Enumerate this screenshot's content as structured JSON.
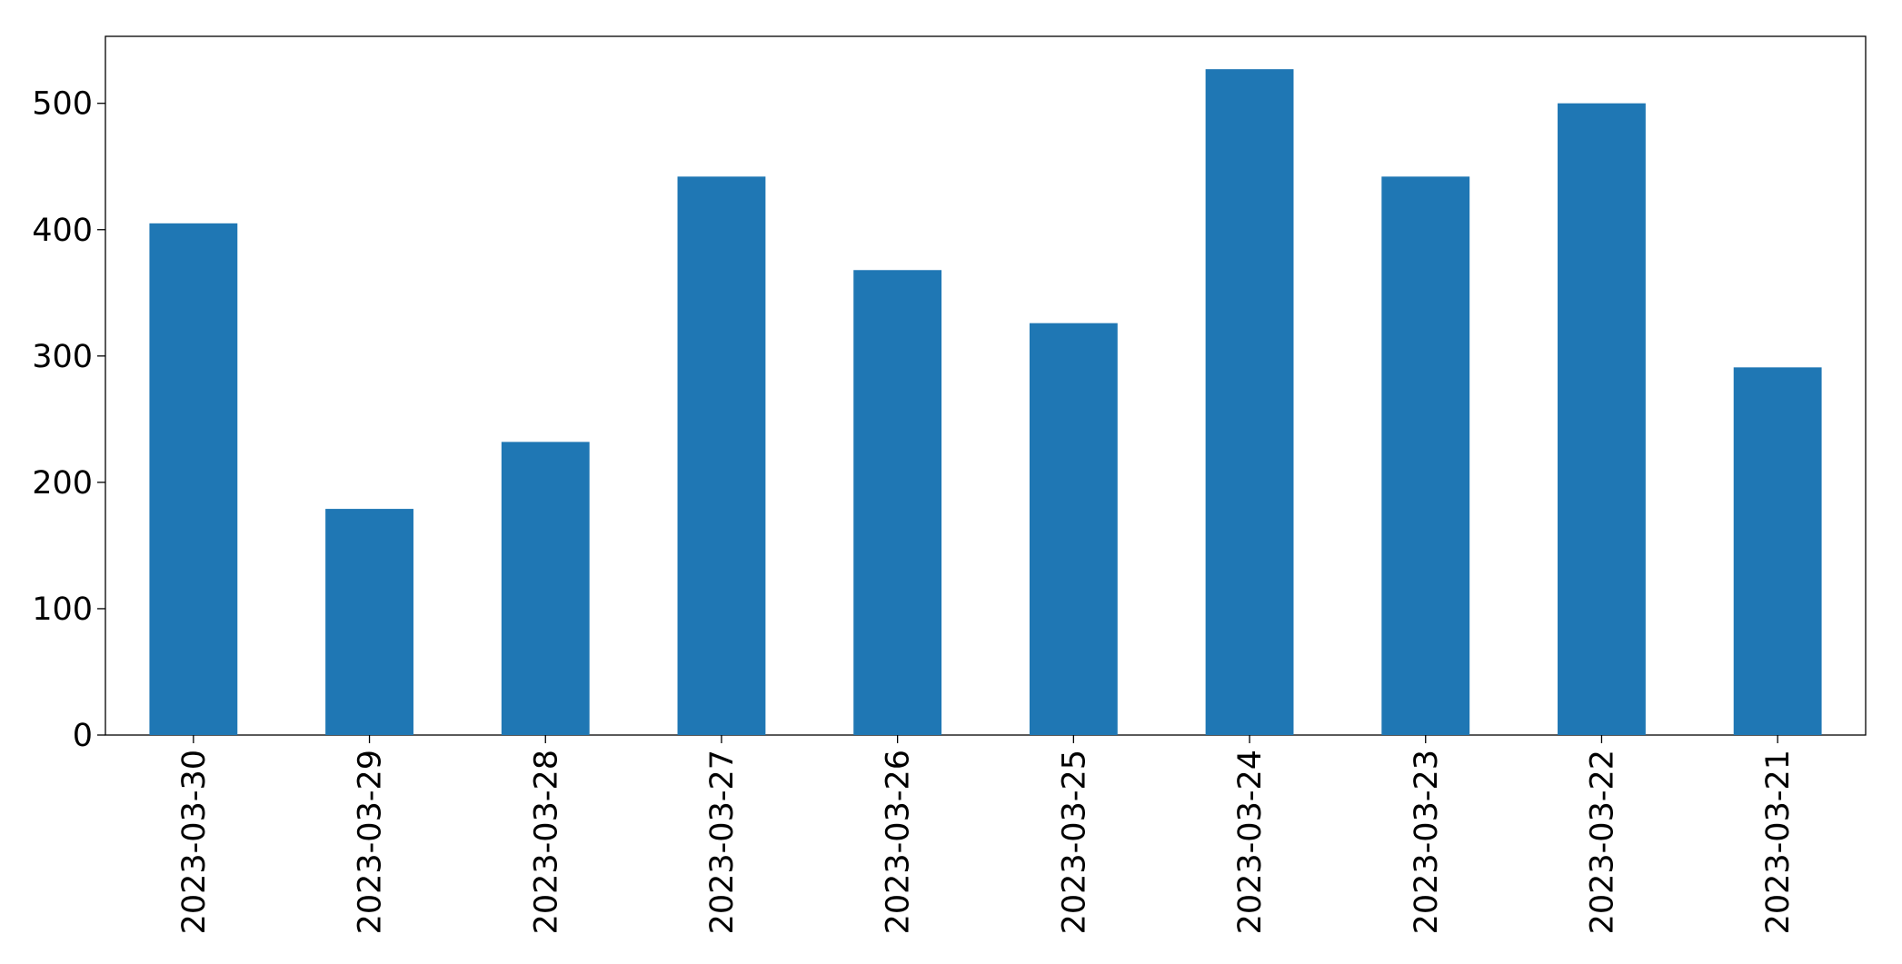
{
  "chart_data": {
    "type": "bar",
    "categories": [
      "2023-03-30",
      "2023-03-29",
      "2023-03-28",
      "2023-03-27",
      "2023-03-26",
      "2023-03-25",
      "2023-03-24",
      "2023-03-23",
      "2023-03-22",
      "2023-03-21"
    ],
    "values": [
      405,
      179,
      232,
      442,
      368,
      326,
      527,
      442,
      500,
      291
    ],
    "color": "#1f77b4",
    "ylim": [
      0,
      553
    ],
    "yticks": [
      0,
      100,
      200,
      300,
      400,
      500
    ],
    "grid": false
  }
}
